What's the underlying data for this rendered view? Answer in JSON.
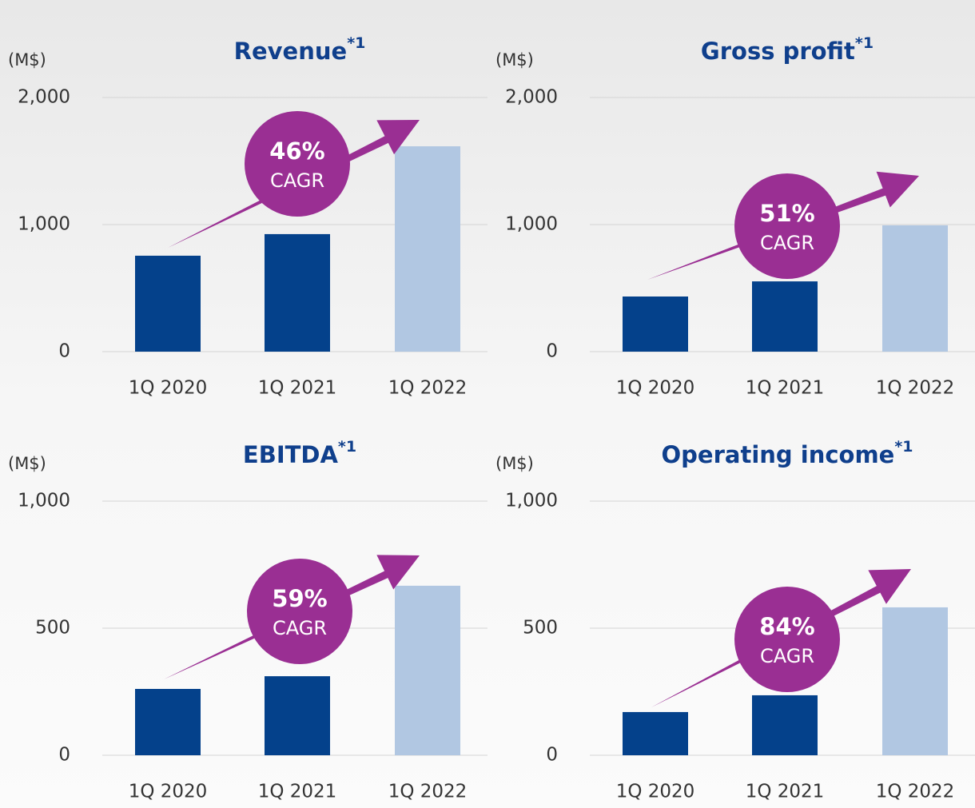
{
  "chart_data": [
    {
      "type": "bar",
      "title": "Revenue",
      "title_note": "*1",
      "y_label": "(M$)",
      "categories": [
        "1Q 2020",
        "1Q 2021",
        "1Q 2022"
      ],
      "values": [
        755,
        925,
        1616
      ],
      "colors": [
        "#04418b",
        "#04418b",
        "#b1c7e2"
      ],
      "ylim": [
        0,
        2000
      ],
      "yticks": [
        0,
        {
          "value": 1000,
          "label": "1,000"
        },
        {
          "value": 2000,
          "label": "2,000"
        }
      ],
      "grid": true,
      "annotation": {
        "value": "46%",
        "label": "CAGR",
        "color": "#9a2f93"
      }
    },
    {
      "type": "bar",
      "title": "Gross profit",
      "title_note": "*1",
      "y_label": "(M$)",
      "categories": [
        "1Q 2020",
        "1Q 2021",
        "1Q 2022"
      ],
      "values": [
        434,
        553,
        994
      ],
      "colors": [
        "#04418b",
        "#04418b",
        "#b1c7e2"
      ],
      "ylim": [
        0,
        2000
      ],
      "yticks": [
        0,
        {
          "value": 1000,
          "label": "1,000"
        },
        {
          "value": 2000,
          "label": "2,000"
        }
      ],
      "grid": true,
      "annotation": {
        "value": "51%",
        "label": "CAGR",
        "color": "#9a2f93"
      }
    },
    {
      "type": "bar",
      "title": "EBITDA",
      "title_note": "*1",
      "y_label": "(M$)",
      "categories": [
        "1Q 2020",
        "1Q 2021",
        "1Q 2022"
      ],
      "values": [
        261,
        311,
        667
      ],
      "colors": [
        "#04418b",
        "#04418b",
        "#b1c7e2"
      ],
      "ylim": [
        0,
        1000
      ],
      "yticks": [
        0,
        500,
        {
          "value": 1000,
          "label": "1,000"
        }
      ],
      "grid": true,
      "annotation": {
        "value": "59%",
        "label": "CAGR",
        "color": "#9a2f93"
      }
    },
    {
      "type": "bar",
      "title": "Operating income",
      "title_note": "*1",
      "y_label": "(M$)",
      "categories": [
        "1Q 2020",
        "1Q 2021",
        "1Q 2022"
      ],
      "values": [
        170,
        236,
        582
      ],
      "colors": [
        "#04418b",
        "#04418b",
        "#b1c7e2"
      ],
      "ylim": [
        0,
        1000
      ],
      "yticks": [
        0,
        500,
        {
          "value": 1000,
          "label": "1,000"
        }
      ],
      "grid": true,
      "annotation": {
        "value": "84%",
        "label": "CAGR",
        "color": "#9a2f93"
      }
    }
  ]
}
